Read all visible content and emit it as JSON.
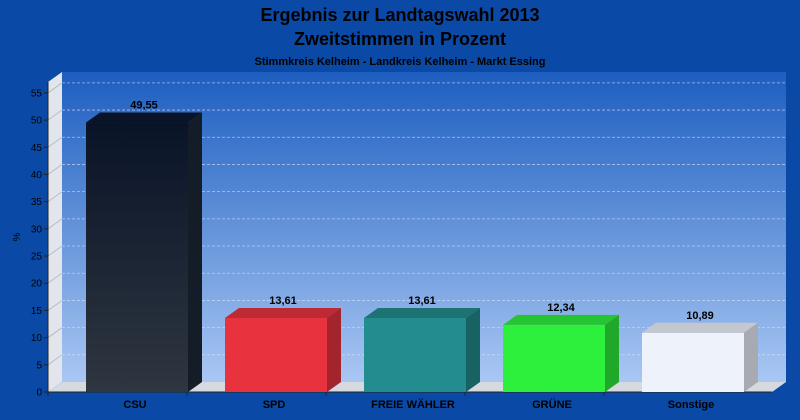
{
  "chart_data": {
    "type": "bar",
    "title": "Ergebnis zur Landtagswahl 2013",
    "title2": "Zweitstimmen in Prozent",
    "subtitle": "Stimmkreis Kelheim - Landkreis Kelheim - Markt Essing",
    "ylabel": "%",
    "ylim": [
      0,
      57
    ],
    "yticks": [
      0,
      5,
      10,
      15,
      20,
      25,
      30,
      35,
      40,
      45,
      50,
      55
    ],
    "grid": true,
    "categories": [
      "CSU",
      "SPD",
      "FREIE WÄHLER",
      "GRÜNE",
      "Sonstige"
    ],
    "values": [
      49.55,
      13.61,
      13.61,
      12.34,
      10.89
    ],
    "value_labels": [
      "49,55",
      "13,61",
      "13,61",
      "12,34",
      "10,89"
    ],
    "colors": [
      "#1c2638",
      "#e8333f",
      "#238c8e",
      "#2df03c",
      "#eef3fb"
    ]
  }
}
